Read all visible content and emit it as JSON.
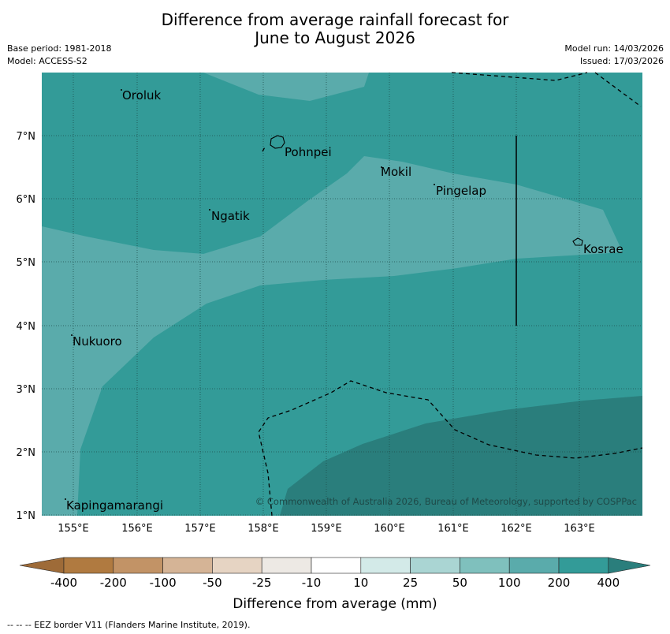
{
  "header": {
    "title_line1": "Difference from average rainfall forecast for",
    "title_line2": "June to August 2026",
    "base_period": "Base period: 1981-2018",
    "model": "Model: ACCESS-S2",
    "model_run": "Model run: 14/03/2026",
    "issued": "Issued: 17/03/2026"
  },
  "map": {
    "lon_labels": [
      "155°E",
      "156°E",
      "157°E",
      "158°E",
      "159°E",
      "160°E",
      "161°E",
      "162°E",
      "163°E"
    ],
    "lat_labels": [
      "7°N",
      "6°N",
      "5°N",
      "4°N",
      "3°N",
      "2°N",
      "1°N"
    ],
    "places": {
      "oroluk": "Oroluk",
      "pohnpei": "Pohnpei",
      "mokil": "Mokil",
      "pingelap": "Pingelap",
      "ngatik": "Ngatik",
      "kosrae": "Kosrae",
      "nukuoro": "Nukuoro",
      "kapingamarangi": "Kapingamarangi"
    },
    "copyright": "© Commonwealth of Australia 2026, Bureau of Meteorology, supported by COSPPac",
    "colors": {
      "c_100_200": "#5aabab",
      "c_200_400": "#339b98",
      "c_400_plus": "#2a7e7c",
      "c_50_100": "#7fc0bd"
    }
  },
  "colorbar": {
    "labels": [
      "-400",
      "-200",
      "-100",
      "-50",
      "-25",
      "-10",
      "10",
      "25",
      "50",
      "100",
      "200",
      "400"
    ],
    "colors": [
      "#9e6b38",
      "#b07a40",
      "#c29366",
      "#d5b496",
      "#e6d4c3",
      "#ede9e4",
      "#ffffff",
      "#d3eae8",
      "#aad5d3",
      "#7fc0bd",
      "#5aabab",
      "#339b98",
      "#2a7e7c"
    ],
    "title": "Difference from average (mm)"
  },
  "footer": {
    "eez_note": "--  --  -- EEZ border V11 (Flanders Marine Institute, 2019)."
  }
}
